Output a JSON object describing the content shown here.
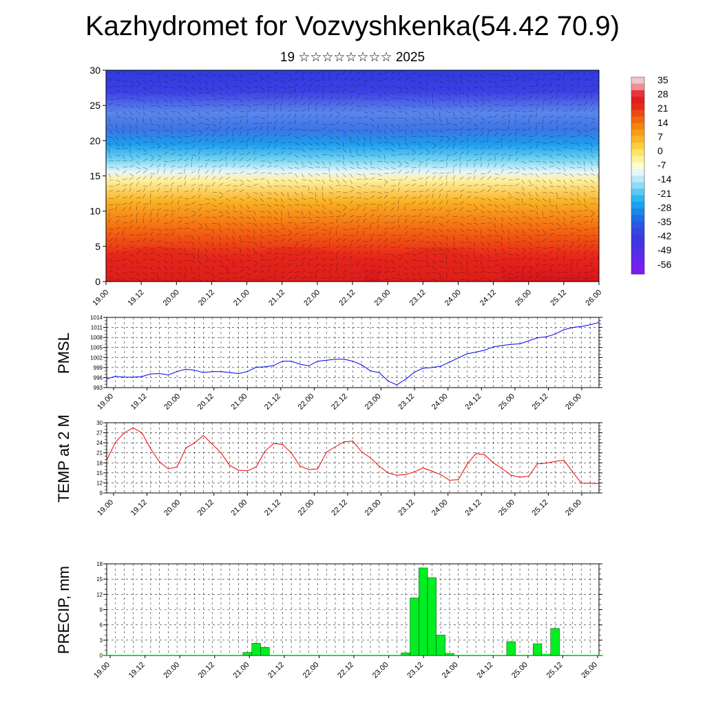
{
  "title": "Kazhydromet for Vozvyshkenka(54.42 70.9)",
  "subtitle": "19 ☆☆☆☆☆☆☆☆ 2025",
  "time_labels": [
    "19.00",
    "19.12",
    "20.00",
    "20.12",
    "21.00",
    "21.12",
    "22.00",
    "22.12",
    "23.00",
    "23.12",
    "24.00",
    "24.12",
    "25.00",
    "25.12",
    "26.00"
  ],
  "colorbar": {
    "labels": [
      "35",
      "28",
      "21",
      "14",
      "7",
      "0",
      "-7",
      "-14",
      "-21",
      "-28",
      "-35",
      "-42",
      "-49",
      "-56"
    ],
    "colors": [
      "#f4b6c2",
      "#e8282c",
      "#ee5a16",
      "#f58a0c",
      "#fab520",
      "#fde24a",
      "#fff9b8",
      "#d8f0fa",
      "#6ad0f3",
      "#1aaaf0",
      "#1672e6",
      "#2c4ddf",
      "#3b32e6",
      "#7a1cf0"
    ]
  },
  "chart_data": [
    {
      "type": "heatmap",
      "name": "cross-section",
      "ylim": [
        0,
        30
      ],
      "yticks": [
        "0",
        "5",
        "10",
        "15",
        "20",
        "25",
        "30"
      ],
      "xlabels": [
        "19.00",
        "19.12",
        "20.00",
        "20.12",
        "21.00",
        "21.12",
        "22.00",
        "22.12",
        "23.00",
        "23.12",
        "24.00",
        "24.12",
        "25.00",
        "25.12",
        "26.00"
      ],
      "value_range": [
        -56,
        35
      ],
      "levels_temp_band": [
        {
          "level": 0,
          "value": 28
        },
        {
          "level": 5,
          "value": 21
        },
        {
          "level": 10,
          "value": 10
        },
        {
          "level": 15,
          "value": -7
        },
        {
          "level": 20,
          "value": -35
        },
        {
          "level": 25,
          "value": -49
        },
        {
          "level": 30,
          "value": -49
        }
      ]
    },
    {
      "type": "line",
      "ylabel": "PMSL",
      "ylim": [
        993,
        1014
      ],
      "yticks": [
        "993",
        "996",
        "999",
        "1002",
        "1005",
        "1008",
        "1011",
        "1014"
      ],
      "color": "#0000ee",
      "x": [
        0,
        3,
        6,
        9,
        12,
        15,
        18,
        21,
        24,
        27,
        30,
        33,
        36,
        39,
        42,
        45,
        48,
        51,
        54,
        57,
        60,
        63,
        66,
        69,
        72,
        75,
        78,
        81,
        84,
        87,
        90,
        93,
        96,
        99,
        102,
        105,
        108,
        111,
        114,
        117,
        120,
        123,
        126,
        129,
        132,
        135,
        138,
        141,
        144,
        147,
        150,
        153,
        156,
        159,
        162,
        165,
        168
      ],
      "values": [
        995.6,
        996.4,
        996.1,
        996.1,
        996.3,
        997.1,
        997.2,
        996.8,
        997.8,
        998.5,
        998.2,
        997.5,
        997.8,
        997.8,
        997.5,
        997.2,
        997.8,
        999.1,
        999.2,
        999.6,
        1000.9,
        1000.9,
        1000.0,
        999.5,
        1000.9,
        1001.2,
        1001.5,
        1001.5,
        1000.9,
        999.8,
        998.0,
        997.5,
        995.0,
        993.8,
        995.5,
        997.6,
        998.8,
        999.0,
        999.4,
        1000.6,
        1001.9,
        1003.1,
        1003.6,
        1004.2,
        1005.2,
        1005.6,
        1005.9,
        1006.1,
        1007.0,
        1007.9,
        1008.2,
        1009.0,
        1010.3,
        1011.0,
        1011.3,
        1011.8,
        1012.5
      ]
    },
    {
      "type": "line",
      "ylabel": "TEMP at 2 M",
      "ylim": [
        9,
        30
      ],
      "yticks": [
        "9",
        "12",
        "15",
        "18",
        "21",
        "24",
        "27",
        "30"
      ],
      "color": "#ee0000",
      "x": [
        0,
        3,
        6,
        9,
        12,
        15,
        18,
        21,
        24,
        27,
        30,
        33,
        36,
        39,
        42,
        45,
        48,
        51,
        54,
        57,
        60,
        63,
        66,
        69,
        72,
        75,
        78,
        81,
        84,
        87,
        90,
        93,
        96,
        99,
        102,
        105,
        108,
        111,
        114,
        117,
        120,
        123,
        126,
        129,
        132,
        135,
        138,
        141,
        144,
        147,
        150,
        153,
        156,
        159,
        162,
        165,
        168
      ],
      "values": [
        18.8,
        24.2,
        27.0,
        28.5,
        27.0,
        22.2,
        18.3,
        16.2,
        16.8,
        22.4,
        24.0,
        26.2,
        23.6,
        21.0,
        17.2,
        15.8,
        15.6,
        16.8,
        21.5,
        23.8,
        23.5,
        21.0,
        17.0,
        16.0,
        16.2,
        21.2,
        22.8,
        24.3,
        24.5,
        21.3,
        19.5,
        17.0,
        15.0,
        14.3,
        14.5,
        15.3,
        16.5,
        15.5,
        14.5,
        12.8,
        13.0,
        17.6,
        20.8,
        20.4,
        18.0,
        16.2,
        14.3,
        13.7,
        14.0,
        17.7,
        17.9,
        18.4,
        18.8,
        15.3,
        11.9,
        11.9,
        11.8
      ]
    },
    {
      "type": "bar",
      "ylabel": "PRECIP, mm",
      "ylim": [
        0,
        18
      ],
      "yticks": [
        "0",
        "3",
        "6",
        "9",
        "12",
        "15",
        "18"
      ],
      "color": "#00ee22",
      "x": [
        0,
        3,
        6,
        9,
        12,
        15,
        18,
        21,
        24,
        27,
        30,
        33,
        36,
        39,
        42,
        45,
        48,
        51,
        54,
        57,
        60,
        63,
        66,
        69,
        72,
        75,
        78,
        81,
        84,
        87,
        90,
        93,
        96,
        99,
        102,
        105,
        108,
        111,
        114,
        117,
        120,
        123,
        126,
        129,
        132,
        135,
        138,
        141,
        144,
        147,
        150,
        153,
        156,
        159,
        162,
        165,
        168
      ],
      "values": [
        0,
        0,
        0,
        0,
        0,
        0,
        0,
        0,
        0,
        0,
        0,
        0,
        0,
        0,
        0,
        0,
        0.6,
        2.4,
        1.6,
        0,
        0,
        0,
        0,
        0,
        0,
        0,
        0,
        0,
        0,
        0,
        0,
        0,
        0,
        0,
        0.5,
        11.3,
        17.2,
        15.3,
        4.0,
        0.4,
        0,
        0,
        0,
        0,
        0,
        0,
        2.7,
        0,
        0,
        2.3,
        0.3,
        5.3,
        0,
        0,
        0,
        0,
        0
      ]
    }
  ]
}
